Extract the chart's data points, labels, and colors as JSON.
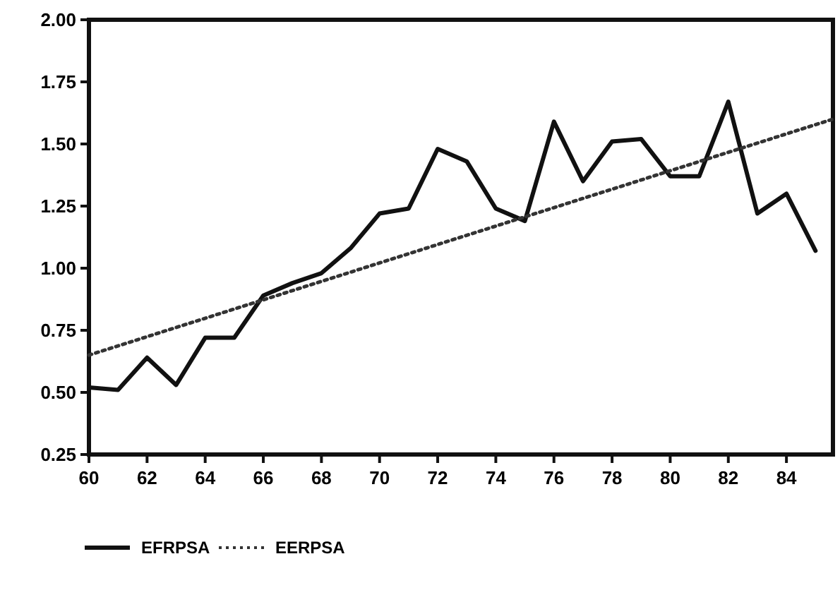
{
  "chart_data": {
    "type": "line",
    "x": [
      60,
      61,
      62,
      63,
      64,
      65,
      66,
      67,
      68,
      69,
      70,
      71,
      72,
      73,
      74,
      75,
      76,
      77,
      78,
      79,
      80,
      81,
      82,
      83,
      84,
      85
    ],
    "series": [
      {
        "name": "EFRPSA",
        "color": "#111111",
        "line_style": "solid",
        "values": [
          0.52,
          0.51,
          0.64,
          0.53,
          0.72,
          0.72,
          0.89,
          0.94,
          0.98,
          1.08,
          1.22,
          1.24,
          1.48,
          1.43,
          1.24,
          1.19,
          1.59,
          1.35,
          1.51,
          1.52,
          1.37,
          1.37,
          1.67,
          1.22,
          1.3,
          1.07
        ]
      },
      {
        "name": "EERPSA",
        "color": "#333333",
        "line_style": "dotted",
        "x": [
          60,
          85.6
        ],
        "values": [
          0.65,
          1.6
        ]
      }
    ],
    "xlim": [
      60,
      85.6
    ],
    "xticks": [
      60,
      62,
      64,
      66,
      68,
      70,
      72,
      74,
      76,
      78,
      80,
      82,
      84
    ],
    "ylim": [
      0.25,
      2.0
    ],
    "yticks": [
      {
        "value": 0.25,
        "label": "0.25"
      },
      {
        "value": 0.5,
        "label": "0.50"
      },
      {
        "value": 0.75,
        "label": "0.75"
      },
      {
        "value": 1.0,
        "label": "1.00"
      },
      {
        "value": 1.25,
        "label": "1.25"
      },
      {
        "value": 1.5,
        "label": "1.50"
      },
      {
        "value": 1.75,
        "label": "1.75"
      },
      {
        "value": 2.0,
        "label": "2.00"
      }
    ],
    "grid": false,
    "legend": "bottom left",
    "marker": "none"
  }
}
